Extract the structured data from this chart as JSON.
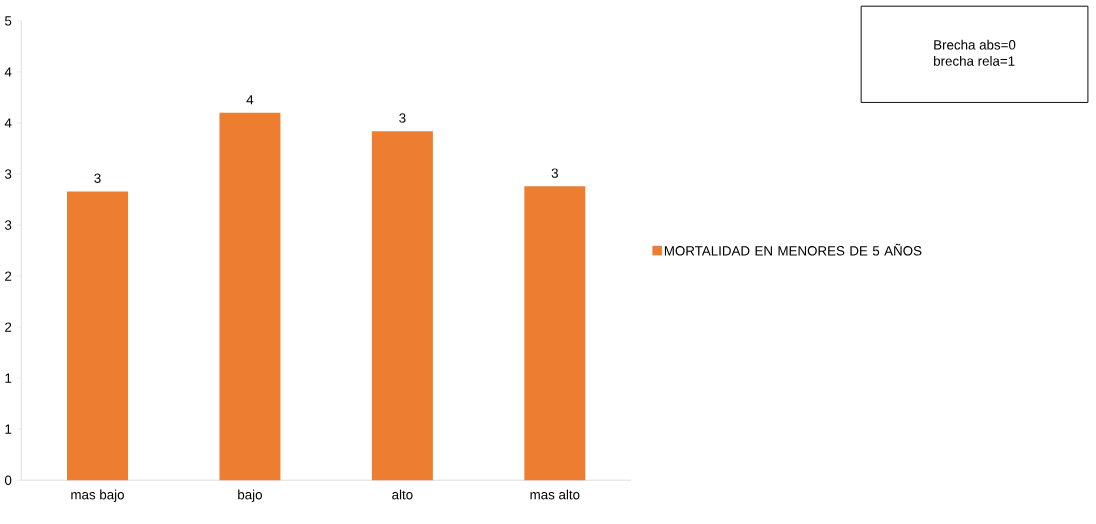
{
  "chart_data": {
    "type": "bar",
    "categories": [
      "mas bajo",
      "bajo",
      "alto",
      "mas alto"
    ],
    "series": [
      {
        "name": "MORTALIDAD EN MENORES DE 5 AÑOS",
        "color": "#ed7d31",
        "values": [
          2.83,
          3.6,
          3.42,
          2.88
        ],
        "value_labels": [
          "3",
          "4",
          "3",
          "3"
        ]
      }
    ],
    "ylim": [
      0,
      4.5
    ],
    "yticks": [
      0,
      {
        "value": 0.5,
        "label": "1"
      },
      1,
      {
        "value": 1.5,
        "label": "2"
      },
      2,
      {
        "value": 2.5,
        "label": "3"
      },
      3,
      {
        "value": 3.5,
        "label": "4"
      },
      4,
      {
        "value": 4.5,
        "label": "5"
      }
    ],
    "legend": "right",
    "annotations": [
      "Brecha abs=0",
      "brecha rela=1"
    ]
  }
}
